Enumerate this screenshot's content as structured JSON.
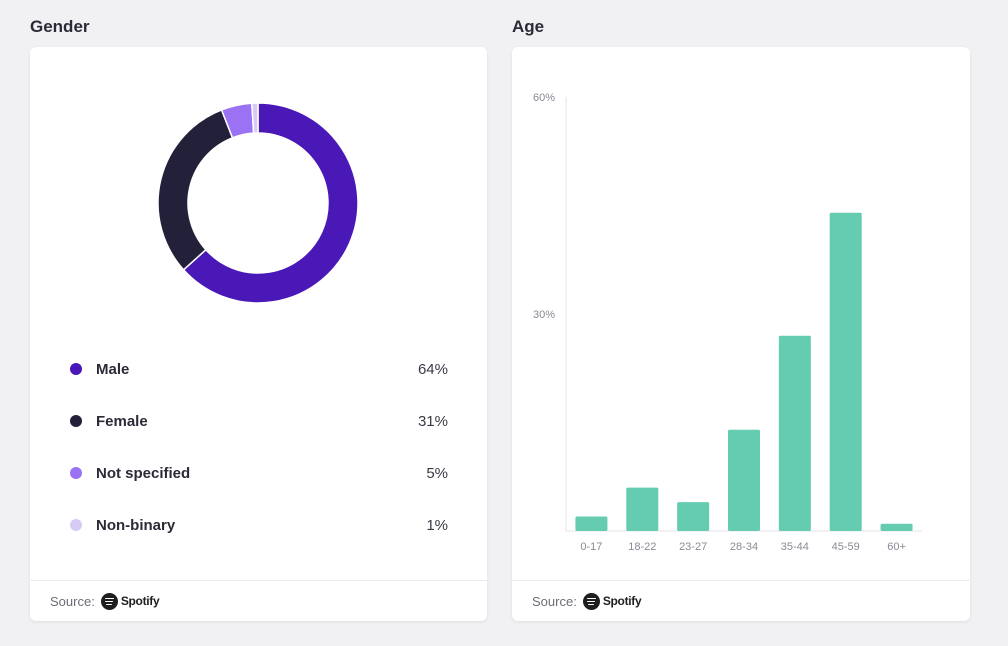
{
  "gender": {
    "title": "Gender",
    "source_label": "Source:",
    "source_brand": "Spotify",
    "source_icon": "spotify-icon"
  },
  "age": {
    "title": "Age",
    "source_label": "Source:",
    "source_brand": "Spotify",
    "source_icon": "spotify-icon"
  },
  "chart_data": [
    {
      "type": "pie",
      "title": "Gender",
      "donut": true,
      "slices": [
        {
          "label": "Male",
          "value": 64,
          "display": "64%",
          "color": "#4a18b7"
        },
        {
          "label": "Female",
          "value": 31,
          "display": "31%",
          "color": "#23213a"
        },
        {
          "label": "Not specified",
          "value": 5,
          "display": "5%",
          "color": "#9a72f3"
        },
        {
          "label": "Non-binary",
          "value": 1,
          "display": "1%",
          "color": "#d5cbf5"
        }
      ],
      "legend_position": "bottom"
    },
    {
      "type": "bar",
      "title": "Age",
      "categories": [
        "0-17",
        "18-22",
        "23-27",
        "28-34",
        "35-44",
        "45-59",
        "60+"
      ],
      "values": [
        2,
        6,
        4,
        14,
        27,
        44,
        1
      ],
      "ylim": [
        0,
        60
      ],
      "yticks": [
        {
          "value": 30,
          "label": "30%"
        },
        {
          "value": 60,
          "label": "60%"
        }
      ],
      "color": "#65ccb2",
      "grid": false
    }
  ]
}
